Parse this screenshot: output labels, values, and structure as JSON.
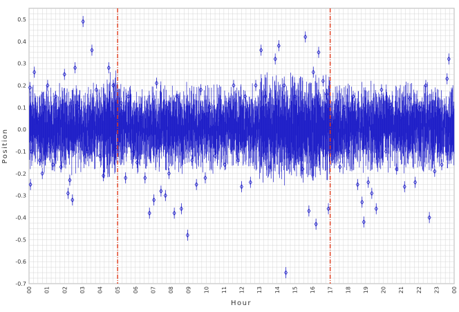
{
  "chart_data": {
    "type": "scatter",
    "title": "",
    "xlabel": "Hour",
    "ylabel": "Position",
    "xlim": [
      0,
      24
    ],
    "ylim": [
      -0.7,
      0.55
    ],
    "grid": true,
    "x_tick_labels": [
      "00",
      "01",
      "02",
      "03",
      "04",
      "05",
      "06",
      "07",
      "08",
      "09",
      "10",
      "11",
      "12",
      "13",
      "14",
      "15",
      "16",
      "17",
      "18",
      "19",
      "20",
      "21",
      "22",
      "23",
      "00"
    ],
    "y_tick_labels": [
      "0.5",
      "0.4",
      "0.3",
      "0.2",
      "0.1",
      "0.0",
      "-0.1",
      "-0.2",
      "-0.3",
      "-0.4",
      "-0.5",
      "-0.6",
      "-0.7"
    ],
    "y_tick_values": [
      0.5,
      0.4,
      0.3,
      0.2,
      0.1,
      0.0,
      -0.1,
      -0.2,
      -0.3,
      -0.4,
      -0.5,
      -0.6,
      -0.7
    ],
    "reference_lines_x": [
      5,
      17
    ],
    "colors": {
      "series": "#1f1fc8",
      "reference": "#e03a1a",
      "grid": "#d4d4d4"
    },
    "series": [
      {
        "points": [
          [
            0.05,
            0.19
          ],
          [
            0.08,
            -0.25
          ],
          [
            0.15,
            -0.1
          ],
          [
            0.3,
            0.26
          ],
          [
            0.45,
            0.05
          ],
          [
            0.6,
            -0.14
          ],
          [
            0.75,
            -0.2
          ],
          [
            0.9,
            0.1
          ],
          [
            1.05,
            0.2
          ],
          [
            1.2,
            -0.08
          ],
          [
            1.35,
            -0.16
          ],
          [
            1.5,
            0.15
          ],
          [
            1.65,
            0.05
          ],
          [
            1.8,
            -0.17
          ],
          [
            2.0,
            0.25
          ],
          [
            2.2,
            -0.29
          ],
          [
            2.3,
            -0.23
          ],
          [
            2.45,
            -0.32
          ],
          [
            2.6,
            0.28
          ],
          [
            2.8,
            0.1
          ],
          [
            3.05,
            0.49
          ],
          [
            3.3,
            -0.1
          ],
          [
            3.55,
            0.36
          ],
          [
            3.8,
            0.18
          ],
          [
            4.0,
            -0.12
          ],
          [
            4.2,
            -0.21
          ],
          [
            4.5,
            0.28
          ],
          [
            4.75,
            0.2
          ],
          [
            4.9,
            -0.08
          ],
          [
            5.2,
            0.12
          ],
          [
            5.45,
            -0.22
          ],
          [
            5.6,
            0.15
          ],
          [
            5.9,
            -0.1
          ],
          [
            6.1,
            -0.15
          ],
          [
            6.3,
            0.05
          ],
          [
            6.55,
            -0.22
          ],
          [
            6.8,
            -0.38
          ],
          [
            7.05,
            -0.32
          ],
          [
            7.2,
            0.21
          ],
          [
            7.45,
            -0.28
          ],
          [
            7.7,
            -0.3
          ],
          [
            7.9,
            -0.2
          ],
          [
            8.2,
            -0.38
          ],
          [
            8.35,
            0.15
          ],
          [
            8.6,
            -0.36
          ],
          [
            8.95,
            -0.48
          ],
          [
            9.2,
            -0.14
          ],
          [
            9.45,
            -0.25
          ],
          [
            9.7,
            0.18
          ],
          [
            9.95,
            -0.22
          ],
          [
            10.2,
            0.1
          ],
          [
            10.5,
            -0.12
          ],
          [
            10.8,
            0.05
          ],
          [
            11.05,
            -0.16
          ],
          [
            11.3,
            0.12
          ],
          [
            11.55,
            0.2
          ],
          [
            11.8,
            -0.14
          ],
          [
            12.0,
            -0.26
          ],
          [
            12.2,
            0.15
          ],
          [
            12.5,
            -0.24
          ],
          [
            12.8,
            0.2
          ],
          [
            13.1,
            0.36
          ],
          [
            13.35,
            0.15
          ],
          [
            13.6,
            -0.17
          ],
          [
            13.9,
            0.32
          ],
          [
            14.1,
            0.38
          ],
          [
            14.4,
            0.2
          ],
          [
            14.5,
            -0.65
          ],
          [
            14.75,
            -0.12
          ],
          [
            15.0,
            0.15
          ],
          [
            15.2,
            0.04
          ],
          [
            15.45,
            -0.18
          ],
          [
            15.6,
            0.42
          ],
          [
            15.8,
            -0.37
          ],
          [
            16.05,
            0.26
          ],
          [
            16.2,
            -0.43
          ],
          [
            16.35,
            0.35
          ],
          [
            16.6,
            0.22
          ],
          [
            16.8,
            0.16
          ],
          [
            16.9,
            -0.36
          ],
          [
            17.2,
            0.02
          ],
          [
            17.55,
            -0.17
          ],
          [
            17.8,
            0.1
          ],
          [
            18.05,
            -0.1
          ],
          [
            18.3,
            0.15
          ],
          [
            18.55,
            -0.25
          ],
          [
            18.8,
            -0.33
          ],
          [
            18.9,
            -0.42
          ],
          [
            19.15,
            -0.24
          ],
          [
            19.35,
            -0.29
          ],
          [
            19.6,
            -0.36
          ],
          [
            19.9,
            0.18
          ],
          [
            20.15,
            -0.1
          ],
          [
            20.4,
            0.11
          ],
          [
            20.75,
            -0.18
          ],
          [
            21.0,
            0.05
          ],
          [
            21.2,
            -0.26
          ],
          [
            21.5,
            0.14
          ],
          [
            21.8,
            -0.24
          ],
          [
            22.05,
            0.1
          ],
          [
            22.4,
            0.2
          ],
          [
            22.6,
            -0.4
          ],
          [
            22.9,
            -0.19
          ],
          [
            23.1,
            0.09
          ],
          [
            23.3,
            -0.16
          ],
          [
            23.6,
            0.23
          ],
          [
            23.7,
            0.32
          ],
          [
            23.85,
            -0.06
          ]
        ]
      }
    ]
  }
}
